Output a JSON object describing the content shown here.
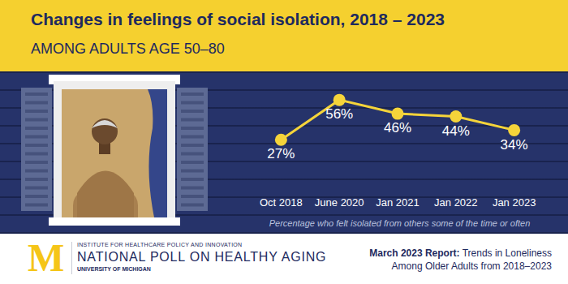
{
  "chart_data": {
    "type": "line",
    "title": "Changes in feelings of social isolation, 2018 – 2023",
    "subtitle": "AMONG ADULTS AGE 50–80",
    "categories": [
      "Oct 2018",
      "June 2020",
      "Jan 2021",
      "Jan 2022",
      "Jan 2023"
    ],
    "values": [
      27,
      56,
      46,
      44,
      34
    ],
    "value_labels": [
      "27%",
      "56%",
      "46%",
      "44%",
      "34%"
    ],
    "color": "#f5d43a",
    "marker": "circle",
    "data_labels": true,
    "grid": false,
    "tick_labels": "x",
    "annotations": [
      "Percentage who felt isolated from others some of the time or often"
    ]
  },
  "footer": {
    "logo": "M",
    "institute": "INSTITUTE FOR HEALTHCARE POLICY AND INNOVATION",
    "poll": "NATIONAL POLL ON HEALTHY AGING",
    "university": "UNIVERSITY OF MICHIGAN",
    "report_heading": "March 2023 Report:",
    "report_lines": [
      "Trends in Loneliness",
      "Among Older Adults from 2018–2023"
    ]
  }
}
